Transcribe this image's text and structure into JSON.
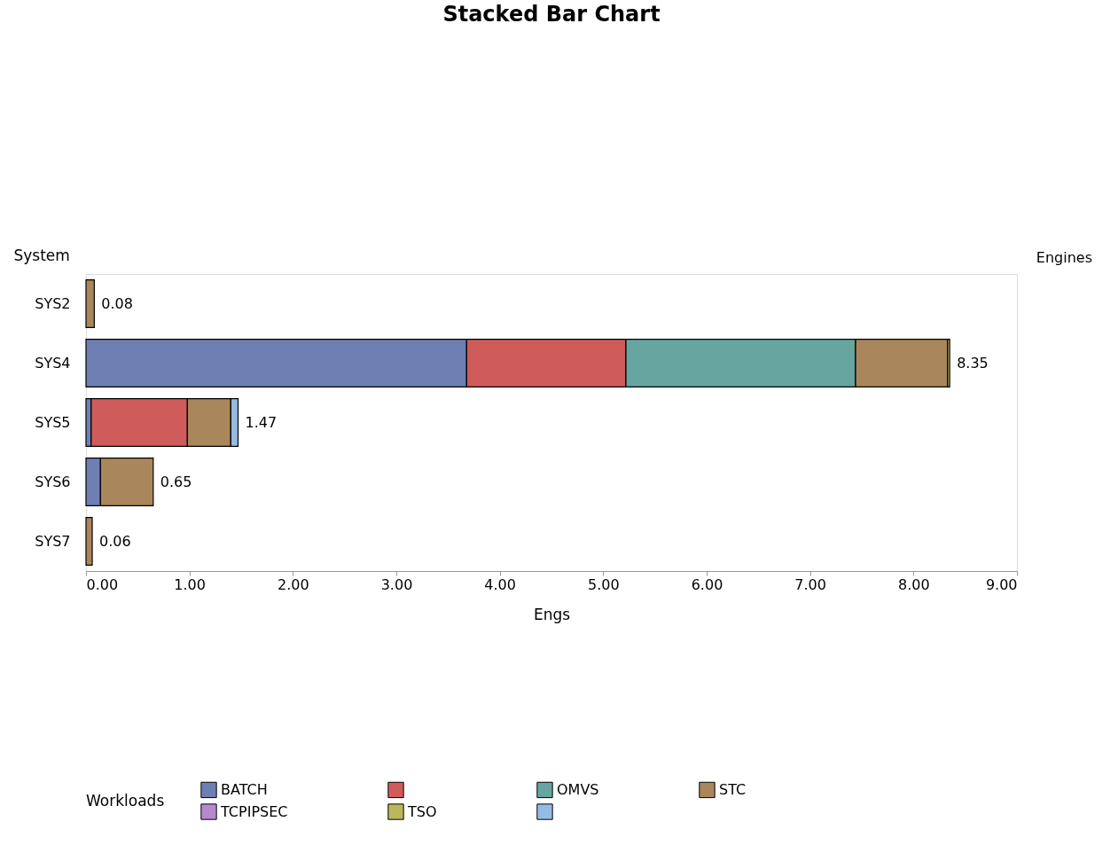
{
  "chart_data": {
    "type": "bar",
    "orientation": "horizontal",
    "stacked": true,
    "title": "Stacked Bar Chart",
    "xlabel": "Engs",
    "ylabel": "System",
    "legend_title": "Workloads",
    "legend": "bottom",
    "categories": [
      "SYS2",
      "SYS4",
      "SYS5",
      "SYS6",
      "SYS7"
    ],
    "series": [
      {
        "name": "BATCH",
        "color": "#6f7eb3",
        "values": [
          null,
          3.68,
          0.05,
          0.14,
          null
        ]
      },
      {
        "color": "#d05b5b",
        "values": [
          null,
          1.54,
          0.93,
          null,
          null
        ]
      },
      {
        "name": "OMVS",
        "color": "#66a5a0",
        "values": [
          null,
          2.22,
          null,
          null,
          null
        ]
      },
      {
        "name": "STC",
        "color": "#a9865b",
        "values": [
          0.08,
          0.89,
          0.42,
          0.51,
          0.06
        ]
      },
      {
        "name": "TCPIPSEC",
        "color": "#b689cd",
        "values": [
          null,
          null,
          null,
          null,
          null
        ]
      },
      {
        "name": "TSO",
        "color": "#bab85c",
        "values": [
          null,
          0.02,
          null,
          null,
          null
        ]
      },
      {
        "color": "#94bce2",
        "values": [
          null,
          null,
          0.07,
          null,
          null
        ]
      }
    ],
    "xlim": [
      0,
      9
    ],
    "xticks": [
      {
        "value": 0,
        "label": "0.00"
      },
      {
        "value": 1,
        "label": "1.00"
      },
      {
        "value": 2,
        "label": "2.00"
      },
      {
        "value": 3,
        "label": "3.00"
      },
      {
        "value": 4,
        "label": "4.00"
      },
      {
        "value": 5,
        "label": "5.00"
      },
      {
        "value": 6,
        "label": "6.00"
      },
      {
        "value": 7,
        "label": "7.00"
      },
      {
        "value": 8,
        "label": "8.00"
      },
      {
        "value": 9,
        "label": "9.00"
      }
    ],
    "totals": [
      "0.08",
      "8.35",
      "1.47",
      "0.65",
      "0.06"
    ],
    "annotations": [
      "Engines"
    ],
    "grid": false
  }
}
